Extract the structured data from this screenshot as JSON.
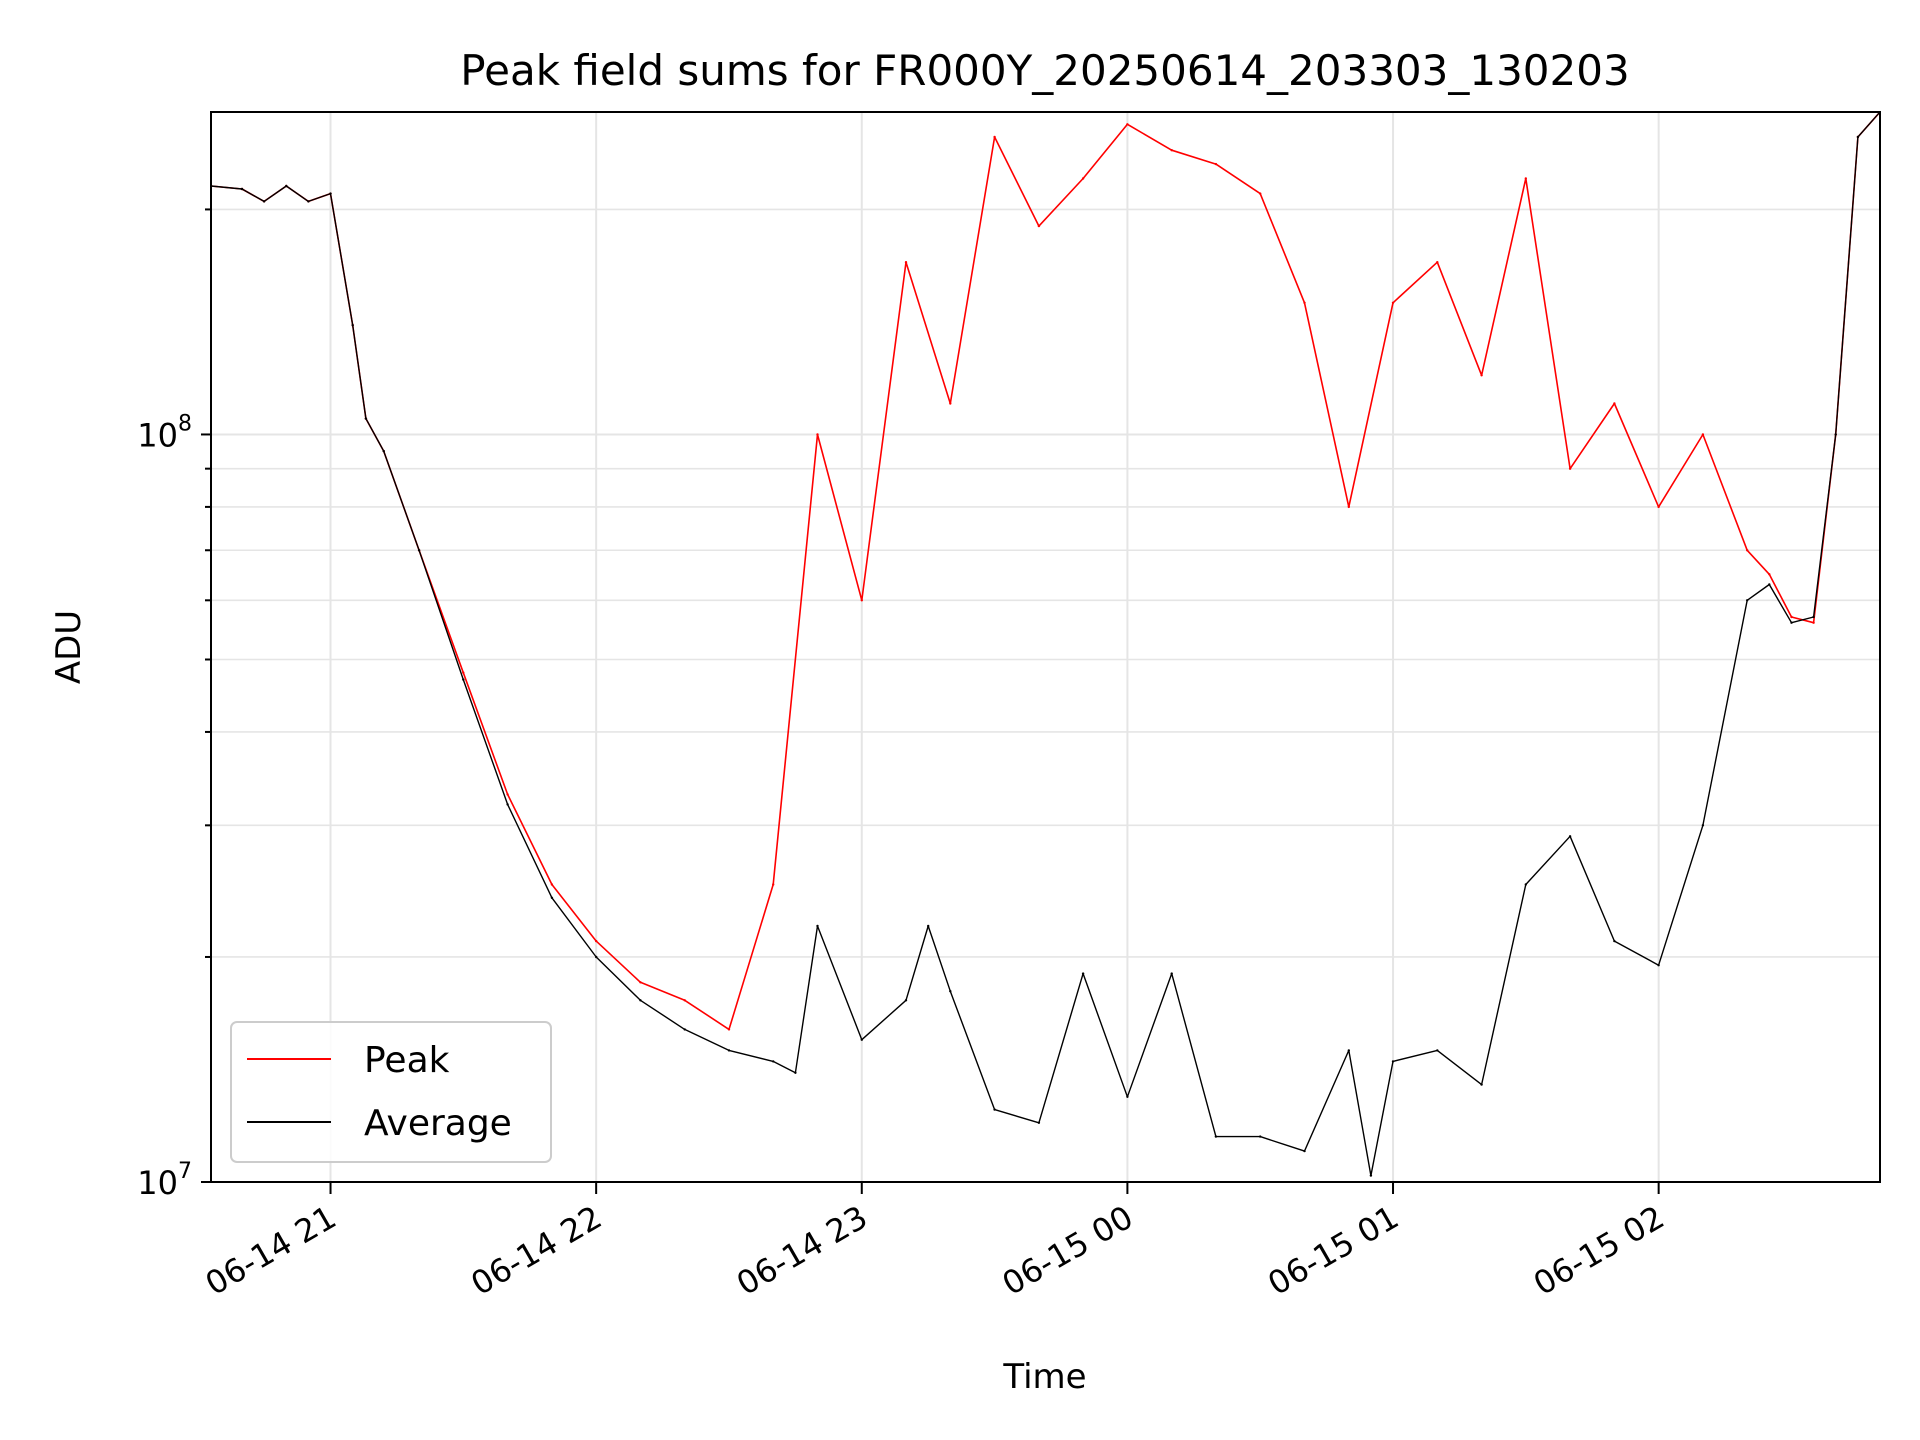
{
  "chart_data": {
    "type": "line",
    "title": "Peak field sums for FR000Y_20250614_203303_130203",
    "xlabel": "Time",
    "ylabel": "ADU",
    "yscale": "log",
    "ylim": [
      10000000,
      270000000
    ],
    "xlim": [
      "06-14 20:33",
      "06-15 02:50"
    ],
    "x_ticks": [
      "06-14 21",
      "06-14 22",
      "06-14 23",
      "06-15 00",
      "06-15 01",
      "06-15 02"
    ],
    "y_ticks": [
      {
        "base": "10",
        "exp": "7",
        "value": 10000000
      },
      {
        "base": "10",
        "exp": "8",
        "value": 100000000
      }
    ],
    "grid": true,
    "legend_position": "lower left",
    "colors": {
      "peak": "#ff0000",
      "average": "#000000",
      "grid": "#e5e5e5"
    },
    "series": [
      {
        "name": "Peak",
        "color": "#ff0000",
        "x": [
          "06-14 20:33",
          "06-14 20:40",
          "06-14 20:45",
          "06-14 20:50",
          "06-14 20:55",
          "06-14 21:00",
          "06-14 21:05",
          "06-14 21:08",
          "06-14 21:12",
          "06-14 21:20",
          "06-14 21:30",
          "06-14 21:40",
          "06-14 21:50",
          "06-14 22:00",
          "06-14 22:10",
          "06-14 22:20",
          "06-14 22:30",
          "06-14 22:40",
          "06-14 22:50",
          "06-14 23:00",
          "06-14 23:10",
          "06-14 23:20",
          "06-14 23:30",
          "06-14 23:40",
          "06-14 23:50",
          "06-15 00:00",
          "06-15 00:10",
          "06-15 00:20",
          "06-15 00:30",
          "06-15 00:40",
          "06-15 00:50",
          "06-15 01:00",
          "06-15 01:10",
          "06-15 01:20",
          "06-15 01:30",
          "06-15 01:40",
          "06-15 01:50",
          "06-15 02:00",
          "06-15 02:10",
          "06-15 02:20",
          "06-15 02:25",
          "06-15 02:30",
          "06-15 02:35",
          "06-15 02:40",
          "06-15 02:45",
          "06-15 02:50"
        ],
        "values": [
          215000000,
          213000000,
          205000000,
          215000000,
          205000000,
          210000000,
          140000000,
          105000000,
          95000000,
          70000000,
          48000000,
          33000000,
          25000000,
          21000000,
          18500000,
          17500000,
          16000000,
          25000000,
          100000000,
          60000000,
          170000000,
          110000000,
          250000000,
          190000000,
          220000000,
          260000000,
          240000000,
          230000000,
          210000000,
          150000000,
          80000000,
          150000000,
          170000000,
          120000000,
          220000000,
          90000000,
          110000000,
          80000000,
          100000000,
          70000000,
          65000000,
          57000000,
          56000000,
          100000000,
          250000000,
          270000000
        ]
      },
      {
        "name": "Average",
        "color": "#000000",
        "x": [
          "06-14 20:33",
          "06-14 20:40",
          "06-14 20:45",
          "06-14 20:50",
          "06-14 20:55",
          "06-14 21:00",
          "06-14 21:05",
          "06-14 21:08",
          "06-14 21:12",
          "06-14 21:20",
          "06-14 21:30",
          "06-14 21:40",
          "06-14 21:50",
          "06-14 22:00",
          "06-14 22:10",
          "06-14 22:20",
          "06-14 22:30",
          "06-14 22:40",
          "06-14 22:45",
          "06-14 22:50",
          "06-14 23:00",
          "06-14 23:10",
          "06-14 23:15",
          "06-14 23:20",
          "06-14 23:30",
          "06-14 23:40",
          "06-14 23:50",
          "06-15 00:00",
          "06-15 00:10",
          "06-15 00:20",
          "06-15 00:30",
          "06-15 00:40",
          "06-15 00:50",
          "06-15 00:55",
          "06-15 01:00",
          "06-15 01:10",
          "06-15 01:20",
          "06-15 01:30",
          "06-15 01:40",
          "06-15 01:50",
          "06-15 02:00",
          "06-15 02:10",
          "06-15 02:20",
          "06-15 02:25",
          "06-15 02:30",
          "06-15 02:35",
          "06-15 02:40",
          "06-15 02:45",
          "06-15 02:50"
        ],
        "values": [
          215000000,
          213000000,
          205000000,
          215000000,
          205000000,
          210000000,
          140000000,
          105000000,
          95000000,
          70000000,
          47000000,
          32000000,
          24000000,
          20000000,
          17500000,
          16000000,
          15000000,
          14500000,
          14000000,
          22000000,
          15500000,
          17500000,
          22000000,
          18000000,
          12500000,
          12000000,
          19000000,
          13000000,
          19000000,
          11500000,
          11500000,
          11000000,
          15000000,
          10200000,
          14500000,
          15000000,
          13500000,
          25000000,
          29000000,
          21000000,
          19500000,
          30000000,
          60000000,
          63000000,
          56000000,
          57000000,
          100000000,
          250000000,
          270000000
        ]
      }
    ]
  }
}
